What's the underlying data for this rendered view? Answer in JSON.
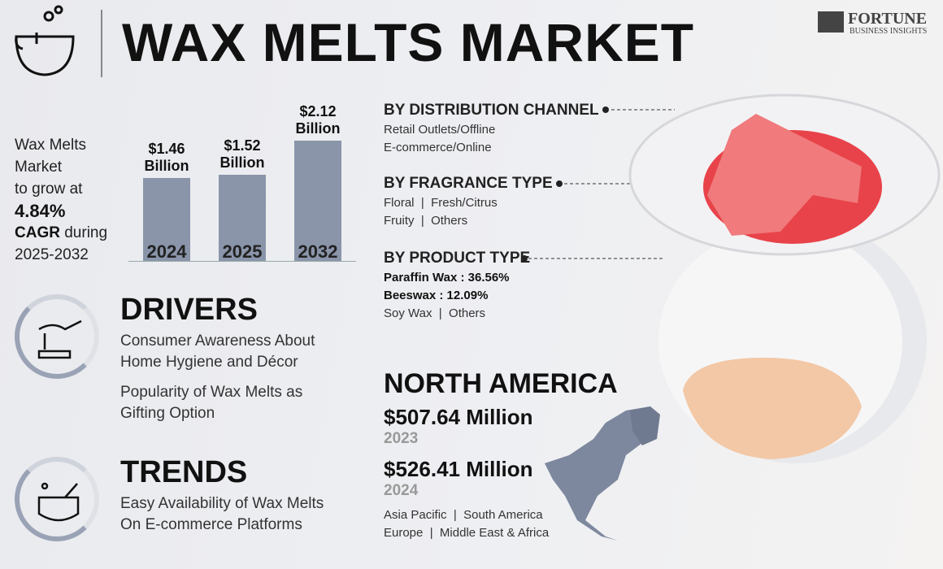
{
  "header": {
    "title": "WAX MELTS MARKET",
    "brand": "FORTUNE",
    "brand_sub": "BUSINESS INSIGHTS"
  },
  "growth": {
    "lines": [
      "Wax Melts",
      "Market",
      "to grow at"
    ],
    "rate": "4.84%",
    "cagr": "CAGR",
    "during": "during",
    "period": "2025-2032"
  },
  "chart_data": {
    "type": "bar",
    "categories": [
      "2024",
      "2025",
      "2032"
    ],
    "values": [
      1.46,
      1.52,
      2.12
    ],
    "value_labels": [
      "$1.46 Billion",
      "$1.52 Billion",
      "$2.12 Billion"
    ],
    "color": "#8a95aa"
  },
  "segments": [
    {
      "heading": "BY DISTRIBUTION CHANNEL",
      "items": [
        "Retail Outlets/Offline",
        "E-commerce/Online"
      ]
    },
    {
      "heading": "BY FRAGRANCE TYPE",
      "items": [
        "Floral  |  Fresh/Citrus",
        "Fruity  |  Others"
      ]
    },
    {
      "heading": "BY PRODUCT TYPE",
      "items": [
        "Paraffin Wax : 36.56%",
        "Beeswax : 12.09%",
        "Soy Wax  |  Others"
      ]
    }
  ],
  "drivers": {
    "title": "DRIVERS",
    "items": [
      "Consumer Awareness About Home Hygiene and Décor",
      "Popularity of Wax Melts as Gifting Option"
    ]
  },
  "trends": {
    "title": "TRENDS",
    "items": [
      "Easy Availability of Wax Melts On E-commerce Platforms"
    ]
  },
  "region": {
    "title": "NORTH AMERICA",
    "figures": [
      {
        "value": "$507.64 Million",
        "year": "2023"
      },
      {
        "value": "$526.41 Million",
        "year": "2024"
      }
    ],
    "others": [
      "Asia Pacific  |  South America",
      "Europe  |  Middle East & Africa"
    ]
  }
}
